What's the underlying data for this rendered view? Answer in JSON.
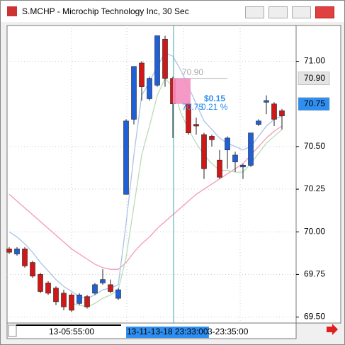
{
  "window": {
    "title": "S.MCHP - Microchip Technology Inc, 30 Sec"
  },
  "chart_data": {
    "type": "candlestick",
    "open": [
      69.9,
      69.87,
      69.9,
      69.82,
      69.75,
      69.7,
      69.67,
      69.64,
      69.63,
      69.58,
      69.62,
      69.64,
      69.7,
      69.69,
      69.61,
      70.22,
      70.66,
      70.99,
      70.78,
      70.86,
      71.13,
      70.9,
      null,
      70.75,
      70.63,
      70.57,
      70.56,
      70.42,
      70.48,
      70.41,
      70.38,
      70.39,
      70.63,
      70.76,
      70.75,
      70.71
    ],
    "high": [
      69.91,
      69.91,
      69.91,
      69.83,
      69.76,
      69.71,
      69.68,
      69.66,
      69.64,
      69.64,
      69.63,
      69.7,
      69.78,
      69.72,
      69.67,
      70.66,
      70.97,
      71.0,
      70.91,
      71.15,
      71.15,
      70.91,
      null,
      70.77,
      70.67,
      70.58,
      70.57,
      70.48,
      70.56,
      70.47,
      70.4,
      70.58,
      70.66,
      70.8,
      70.76,
      70.72
    ],
    "low": [
      69.87,
      69.86,
      69.79,
      69.73,
      69.64,
      69.63,
      69.57,
      69.54,
      69.53,
      69.57,
      69.55,
      69.63,
      69.69,
      69.64,
      69.6,
      70.22,
      70.63,
      70.77,
      70.77,
      70.85,
      70.85,
      70.55,
      null,
      70.57,
      70.57,
      70.31,
      70.5,
      70.31,
      70.37,
      70.35,
      70.31,
      70.38,
      70.62,
      70.69,
      70.62,
      70.6
    ],
    "close": [
      69.88,
      69.9,
      69.8,
      69.74,
      69.65,
      69.64,
      69.59,
      69.56,
      69.54,
      69.63,
      69.56,
      69.69,
      69.72,
      69.65,
      69.66,
      70.65,
      70.97,
      70.85,
      70.9,
      71.15,
      70.9,
      70.75,
      null,
      70.58,
      70.62,
      70.37,
      70.54,
      70.32,
      70.55,
      70.45,
      70.39,
      70.58,
      70.65,
      70.77,
      70.66,
      70.68
    ],
    "up_color": "#1f5fd8",
    "down_color": "#d01818",
    "series": [
      {
        "color": "#f29ab8",
        "values": [
          70.22,
          70.18,
          70.14,
          70.1,
          70.06,
          70.02,
          69.98,
          69.94,
          69.9,
          69.87,
          69.84,
          69.81,
          69.79,
          69.78,
          69.78,
          69.82,
          69.88,
          69.93,
          69.97,
          70.02,
          70.06,
          70.1,
          70.14,
          70.18,
          70.22,
          70.25,
          70.28,
          70.31,
          70.34,
          70.37,
          70.4,
          70.45,
          70.5,
          70.55,
          70.59,
          70.62
        ]
      },
      {
        "color": "#a9c4e8",
        "values": [
          70.0,
          69.97,
          69.93,
          69.88,
          69.82,
          69.77,
          69.72,
          69.68,
          69.65,
          69.62,
          69.61,
          69.63,
          69.66,
          69.67,
          69.69,
          70.05,
          70.45,
          70.8,
          70.88,
          70.97,
          71.05,
          71.03,
          70.95,
          70.85,
          70.75,
          70.65,
          70.6,
          70.55,
          70.52,
          70.5,
          70.48,
          70.5,
          70.56,
          70.62,
          70.66,
          70.68
        ]
      },
      {
        "color": "#b7dcb7",
        "values": [
          null,
          null,
          null,
          null,
          null,
          null,
          null,
          null,
          69.58,
          69.57,
          69.56,
          69.58,
          69.61,
          69.63,
          69.66,
          69.85,
          70.15,
          70.45,
          70.62,
          70.8,
          70.9,
          70.85,
          70.7,
          70.6,
          70.52,
          70.45,
          70.4,
          70.36,
          70.36,
          70.35,
          70.35,
          70.4,
          70.46,
          70.52,
          70.56,
          70.6
        ]
      }
    ],
    "ylim": [
      69.465,
      71.21
    ],
    "yticks": [
      {
        "value": 69.5,
        "label": "69.50"
      },
      69.75,
      {
        "value": 70,
        "label": "70.00"
      },
      70.25,
      {
        "value": 70.5,
        "label": "70.50"
      },
      {
        "value": 71,
        "label": "71.00"
      }
    ],
    "grid": true,
    "price_markers": [
      {
        "value": 70.9,
        "label": "70.90",
        "color": "#e4e4e4",
        "text_color": "#000000"
      },
      {
        "value": 70.75,
        "label": "70.75",
        "color": "#2e8ff0",
        "text_color": "#000000"
      }
    ],
    "measure": {
      "start": {
        "value": 70.9,
        "label": "70.90"
      },
      "end": {
        "value": 70.75,
        "label": "70.75"
      },
      "change_label": "$0.15",
      "percent_label": "0.21 %",
      "color": "#f48fc0"
    },
    "x_labels": [
      "13-05:55:00",
      "13-11-13-18 23:33:00",
      "3-23:35:00"
    ]
  }
}
